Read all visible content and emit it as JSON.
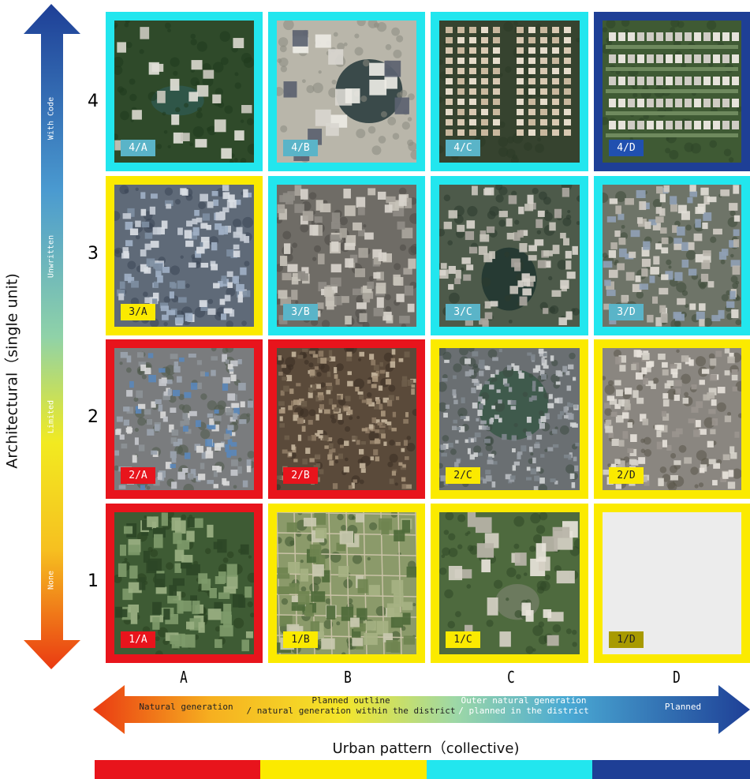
{
  "vertical_axis": {
    "title": "Architectural（single unit)",
    "levels": [
      "4",
      "3",
      "2",
      "1"
    ],
    "labels": [
      "With Code",
      "Unwritten",
      "Limited",
      "None"
    ]
  },
  "horizontal_axis": {
    "title": "Urban pattern（collective)",
    "columns": [
      "A",
      "B",
      "C",
      "D"
    ],
    "labels": [
      {
        "line1": "Natural generation",
        "line2": ""
      },
      {
        "line1": "Planned outline",
        "line2": "/ natural generation within the district"
      },
      {
        "line1": "Outer natural generation",
        "line2": "/ planned in the district"
      },
      {
        "line1": "Planned",
        "line2": ""
      }
    ]
  },
  "colors": {
    "red": "#e8141c",
    "yellow": "#fbea00",
    "cyan": "#22e6ee",
    "navy": "#1e3f96"
  },
  "grid": [
    [
      {
        "code": "4/A",
        "frame": "cyan",
        "tag": "#5ab4c8",
        "tag_text": "#ffffff",
        "image": "aerial-park-lake"
      },
      {
        "code": "4/B",
        "frame": "cyan",
        "tag": "#5ab4c8",
        "tag_text": "#ffffff",
        "image": "aerial-high-rise-blocks"
      },
      {
        "code": "4/C",
        "frame": "cyan",
        "tag": "#5ab4c8",
        "tag_text": "#ffffff",
        "image": "aerial-grid-villas"
      },
      {
        "code": "4/D",
        "frame": "navy",
        "tag": "#2050b0",
        "tag_text": "#ffffff",
        "image": "aerial-planned-rows"
      }
    ],
    [
      {
        "code": "3/A",
        "frame": "yellow",
        "tag": "#fbea00",
        "tag_text": "#222222",
        "image": "aerial-dense-blue-roofs"
      },
      {
        "code": "3/B",
        "frame": "cyan",
        "tag": "#5ab4c8",
        "tag_text": "#ffffff",
        "image": "aerial-dense-midrise"
      },
      {
        "code": "3/C",
        "frame": "cyan",
        "tag": "#5ab4c8",
        "tag_text": "#ffffff",
        "image": "aerial-lakeside-blocks"
      },
      {
        "code": "3/D",
        "frame": "cyan",
        "tag": "#5ab4c8",
        "tag_text": "#ffffff",
        "image": "aerial-planned-grid"
      }
    ],
    [
      {
        "code": "2/A",
        "frame": "red",
        "tag": "#e8141c",
        "tag_text": "#ffffff",
        "image": "aerial-informal-dense"
      },
      {
        "code": "2/B",
        "frame": "red",
        "tag": "#e8141c",
        "tag_text": "#ffffff",
        "image": "aerial-slum-block"
      },
      {
        "code": "2/C",
        "frame": "yellow",
        "tag": "#fbea00",
        "tag_text": "#222222",
        "image": "aerial-informal-waterside"
      },
      {
        "code": "2/D",
        "frame": "yellow",
        "tag": "#fbea00",
        "tag_text": "#222222",
        "image": "aerial-lowrise-grid"
      }
    ],
    [
      {
        "code": "1/A",
        "frame": "red",
        "tag": "#e8141c",
        "tag_text": "#ffffff",
        "image": "aerial-rural-trees"
      },
      {
        "code": "1/B",
        "frame": "yellow",
        "tag": "#fbea00",
        "tag_text": "#222222",
        "image": "aerial-rural-plots"
      },
      {
        "code": "1/C",
        "frame": "yellow",
        "tag": "#fbea00",
        "tag_text": "#222222",
        "image": "aerial-construction-site"
      },
      {
        "code": "1/D",
        "frame": "yellow",
        "tag": "#a89a00",
        "tag_text": "#222222",
        "image": "empty"
      }
    ]
  ],
  "legend_bar": [
    "red",
    "yellow",
    "cyan",
    "navy"
  ]
}
